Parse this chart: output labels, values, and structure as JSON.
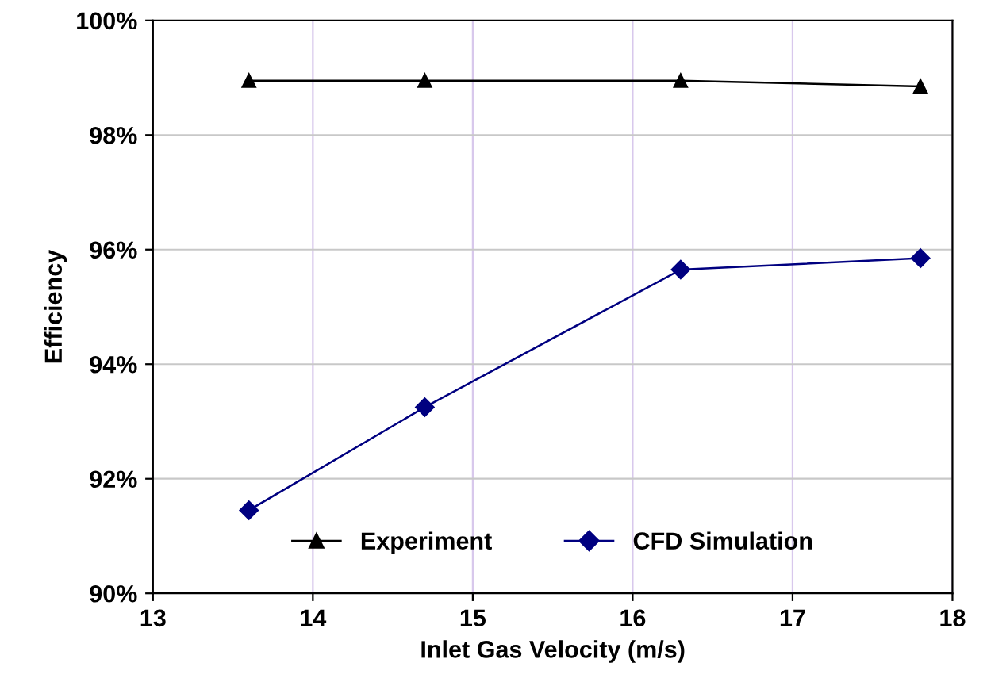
{
  "chart_data": {
    "type": "line",
    "xlabel": "Inlet Gas Velocity (m/s)",
    "ylabel": "Efficiency",
    "xlim": [
      13,
      18
    ],
    "xticks": [
      13,
      14,
      15,
      16,
      17,
      18
    ],
    "ylim": [
      90,
      100
    ],
    "yticks": [
      {
        "value": 90,
        "label": "90%"
      },
      {
        "value": 92,
        "label": "92%"
      },
      {
        "value": 94,
        "label": "94%"
      },
      {
        "value": 96,
        "label": "96%"
      },
      {
        "value": 98,
        "label": "98%"
      },
      {
        "value": 100,
        "label": "100%"
      }
    ],
    "grid": true,
    "legend": "bottom",
    "line_style": "solid",
    "series": [
      {
        "name": "Experiment",
        "color": "#000000",
        "marker": "triangle",
        "x": [
          13.6,
          14.7,
          16.3,
          17.8
        ],
        "values": [
          98.95,
          98.95,
          98.95,
          98.85
        ]
      },
      {
        "name": "CFD Simulation",
        "color": "#000080",
        "marker": "diamond",
        "x": [
          13.6,
          14.7,
          16.3,
          17.8
        ],
        "values": [
          91.45,
          93.25,
          95.65,
          95.85
        ]
      }
    ]
  }
}
